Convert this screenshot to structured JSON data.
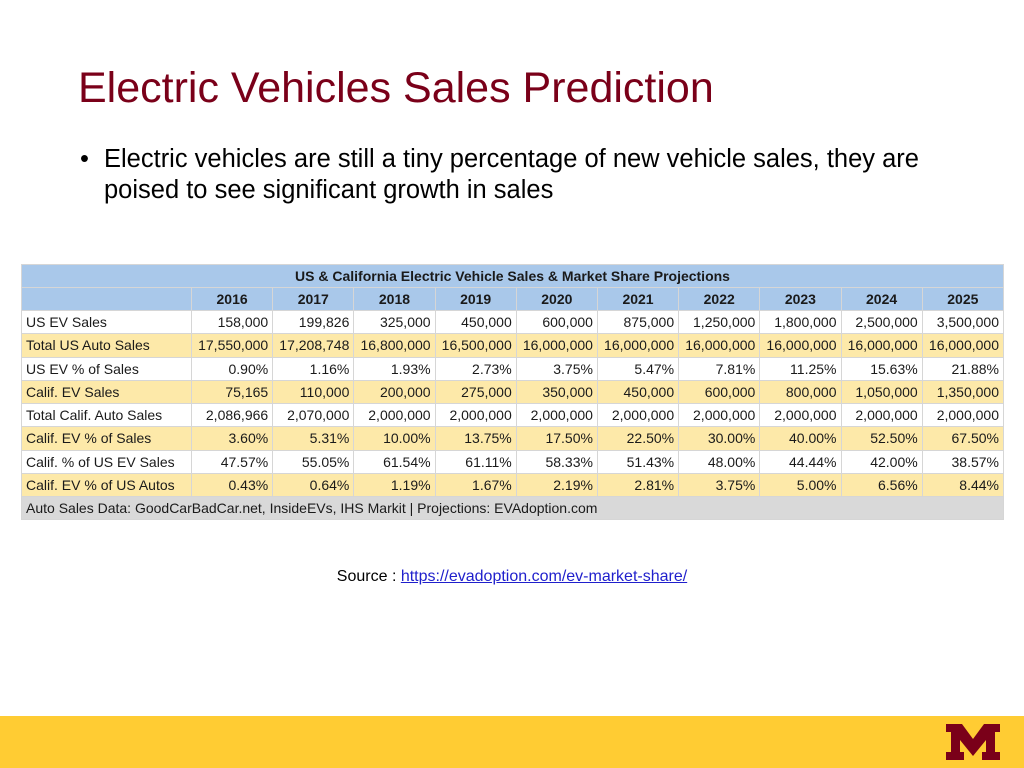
{
  "slide": {
    "title": "Electric Vehicles Sales Prediction",
    "bullet_symbol": "•",
    "bullet_text": "Electric vehicles are still a tiny percentage of new vehicle sales, they are poised to see significant growth in sales"
  },
  "table": {
    "caption": "US & California Electric Vehicle Sales & Market Share Projections",
    "years": [
      "2016",
      "2017",
      "2018",
      "2019",
      "2020",
      "2021",
      "2022",
      "2023",
      "2024",
      "2025"
    ],
    "rows": [
      {
        "label": "US EV Sales",
        "values": [
          "158,000",
          "199,826",
          "325,000",
          "450,000",
          "600,000",
          "875,000",
          "1,250,000",
          "1,800,000",
          "2,500,000",
          "3,500,000"
        ]
      },
      {
        "label": "Total US Auto Sales",
        "values": [
          "17,550,000",
          "17,208,748",
          "16,800,000",
          "16,500,000",
          "16,000,000",
          "16,000,000",
          "16,000,000",
          "16,000,000",
          "16,000,000",
          "16,000,000"
        ]
      },
      {
        "label": "US EV % of Sales",
        "values": [
          "0.90%",
          "1.16%",
          "1.93%",
          "2.73%",
          "3.75%",
          "5.47%",
          "7.81%",
          "11.25%",
          "15.63%",
          "21.88%"
        ]
      },
      {
        "label": "Calif. EV Sales",
        "values": [
          "75,165",
          "110,000",
          "200,000",
          "275,000",
          "350,000",
          "450,000",
          "600,000",
          "800,000",
          "1,050,000",
          "1,350,000"
        ]
      },
      {
        "label": "Total Calif. Auto Sales",
        "values": [
          "2,086,966",
          "2,070,000",
          "2,000,000",
          "2,000,000",
          "2,000,000",
          "2,000,000",
          "2,000,000",
          "2,000,000",
          "2,000,000",
          "2,000,000"
        ]
      },
      {
        "label": "Calif. EV % of Sales",
        "values": [
          "3.60%",
          "5.31%",
          "10.00%",
          "13.75%",
          "17.50%",
          "22.50%",
          "30.00%",
          "40.00%",
          "52.50%",
          "67.50%"
        ]
      },
      {
        "label": "Calif. % of US EV Sales",
        "values": [
          "47.57%",
          "55.05%",
          "61.54%",
          "61.11%",
          "58.33%",
          "51.43%",
          "48.00%",
          "44.44%",
          "42.00%",
          "38.57%"
        ]
      },
      {
        "label": "Calif. EV % of US Autos",
        "values": [
          "0.43%",
          "0.64%",
          "1.19%",
          "1.67%",
          "2.19%",
          "2.81%",
          "3.75%",
          "5.00%",
          "6.56%",
          "8.44%"
        ]
      }
    ],
    "footer": "Auto Sales Data: GoodCarBadCar.net, InsideEVs, IHS Markit | Projections: EVAdoption.com"
  },
  "source": {
    "prefix": "Source : ",
    "link_text": "https://evadoption.com/ev-market-share/"
  },
  "branding": {
    "logo_icon": "university-of-minnesota-m-logo",
    "logo_color": "#7a0019",
    "footer_bar_color": "#ffcc33"
  }
}
